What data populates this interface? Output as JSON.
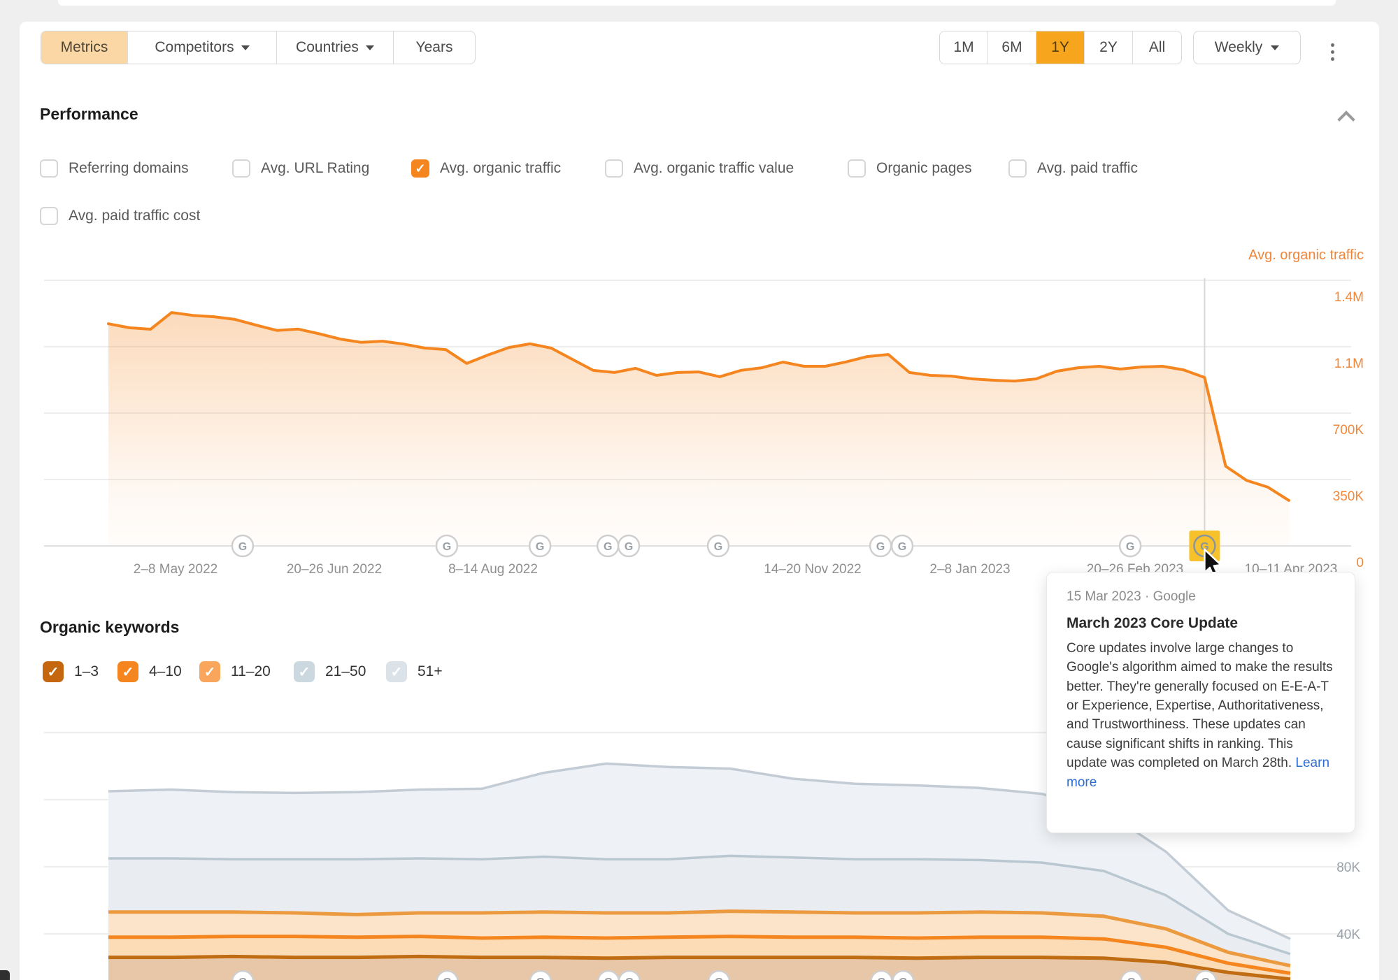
{
  "toolbar": {
    "tabs": [
      {
        "label": "Metrics",
        "selected": true,
        "caret": false
      },
      {
        "label": "Competitors",
        "selected": false,
        "caret": true
      },
      {
        "label": "Countries",
        "selected": false,
        "caret": true
      },
      {
        "label": "Years",
        "selected": false,
        "caret": false
      }
    ],
    "ranges": [
      "1M",
      "6M",
      "1Y",
      "2Y",
      "All"
    ],
    "range_selected": "1Y",
    "granularity": "Weekly",
    "icons": {
      "menu": "kebab-vertical-icon",
      "caret": "caret-down-icon"
    }
  },
  "performance": {
    "title": "Performance",
    "collapse_icon": "chevron-up-icon",
    "metrics": [
      {
        "label": "Referring domains",
        "checked": false
      },
      {
        "label": "Avg. URL Rating",
        "checked": false
      },
      {
        "label": "Avg. organic traffic",
        "checked": true,
        "color": "#f5861f"
      },
      {
        "label": "Avg. organic traffic value",
        "checked": false
      },
      {
        "label": "Organic pages",
        "checked": false
      },
      {
        "label": "Avg. paid traffic",
        "checked": false
      },
      {
        "label": "Avg. paid traffic cost",
        "checked": false
      }
    ],
    "check_glyph": "✓"
  },
  "keywords": {
    "title": "Organic keywords",
    "filters": [
      {
        "label": "1–3",
        "checked": true,
        "color": "#c4670e"
      },
      {
        "label": "4–10",
        "checked": true,
        "color": "#f5861f"
      },
      {
        "label": "11–20",
        "checked": true,
        "color": "#f9a55b"
      },
      {
        "label": "21–50",
        "checked": true,
        "color": "#ccd8e0"
      },
      {
        "label": "51+",
        "checked": true,
        "color": "#dbe3e9"
      }
    ]
  },
  "tooltip": {
    "date": "15 Mar 2023 · Google",
    "title": "March 2023 Core Update",
    "body": "Core updates involve large changes to Google's algorithm aimed to make the results better. They're generally focused on E-E-A-T or Experience, Expertise, Authoritativeness, and Trustworthiness. These updates can cause significant shifts in ranking. This update was completed on March 28th.",
    "link": "Learn more"
  },
  "chart_data": [
    {
      "type": "area",
      "name": "avg-organic-traffic",
      "title": "Avg. organic traffic",
      "line_color": "#f5861f",
      "grid": true,
      "legend_position": "top-right",
      "y_ticks": [
        {
          "label": "1.4M",
          "value": 1400
        },
        {
          "label": "1.1M",
          "value": 1050
        },
        {
          "label": "700K",
          "value": 700
        },
        {
          "label": "350K",
          "value": 350
        },
        {
          "label": "0",
          "value": 0
        }
      ],
      "ylim": [
        0,
        1400
      ],
      "x_tick_labels": [
        "2–8 May 2022",
        "20–26 Jun 2022",
        "8–14 Aug 2022",
        "14–20 Nov 2022",
        "2–8 Jan 2023",
        "20–26 Feb 2023",
        "10–11 Apr 2023"
      ],
      "values_k": [
        1171,
        1150,
        1142,
        1230,
        1215,
        1208,
        1194,
        1164,
        1136,
        1143,
        1118,
        1090,
        1073,
        1079,
        1064,
        1043,
        1035,
        962,
        1006,
        1046,
        1065,
        1043,
        984,
        925,
        914,
        936,
        899,
        914,
        917,
        892,
        925,
        939,
        969,
        947,
        947,
        970,
        998,
        1009,
        914,
        899,
        895,
        880,
        873,
        869,
        880,
        921,
        939,
        947,
        932,
        943,
        947,
        928,
        888,
        420,
        345,
        310,
        240
      ],
      "highlight_index": 52,
      "google_update_fracs": [
        0.1137,
        0.2867,
        0.3656,
        0.4231,
        0.4408,
        0.5166,
        0.6541,
        0.6724,
        0.8656
      ],
      "marker_glyph": "G",
      "marker_icon": "google-g-icon",
      "highlight_marker_icon": "google-g-icon-highlighted",
      "cursor_icon": "mouse-cursor-icon"
    },
    {
      "type": "stacked-area",
      "name": "organic-keywords-positions",
      "grid": true,
      "y_grid_values": [
        160,
        120,
        80,
        40
      ],
      "y_ticks": [
        {
          "label": "80K",
          "value": 80
        },
        {
          "label": "40K",
          "value": 40
        }
      ],
      "series": [
        {
          "name": "1–3",
          "fill": "#e8c7a8",
          "line": "#c06c12",
          "lw": 5,
          "values": [
            26,
            26,
            26.5,
            26,
            26,
            26.5,
            26,
            26,
            25.5,
            26,
            26,
            26,
            26,
            25.5,
            26,
            26,
            25.5,
            23,
            17,
            13
          ]
        },
        {
          "name": "4–10",
          "fill": "#fbdcb6",
          "line": "#f5861f",
          "lw": 5,
          "values": [
            12,
            12,
            12,
            12.5,
            12,
            12,
            11.5,
            12,
            12,
            12,
            12.5,
            12,
            12,
            12,
            12,
            12,
            11.5,
            9,
            5.5,
            3.5
          ]
        },
        {
          "name": "11–20",
          "fill": "#fce4ca",
          "line": "#ec9a40",
          "lw": 5,
          "values": [
            15,
            15,
            14.5,
            14,
            13.5,
            14,
            15,
            15,
            15,
            14.5,
            15,
            15,
            14.5,
            15,
            15,
            14.5,
            13.5,
            11,
            6.5,
            4.5
          ]
        },
        {
          "name": "21–50",
          "fill": "#e9edf2",
          "line": "#b9c7d1",
          "lw": 3.5,
          "values": [
            32,
            32,
            31.5,
            32,
            33,
            32.5,
            32,
            33,
            32,
            32,
            33,
            32.5,
            32,
            32,
            31,
            30,
            27,
            20,
            11,
            7
          ]
        },
        {
          "name": "51+",
          "fill": "#eef1f5",
          "line": "#c3ccd5",
          "lw": 3.5,
          "values": [
            40,
            41,
            40,
            39.5,
            40,
            41,
            42,
            50,
            57,
            55,
            52,
            47,
            45,
            44,
            43,
            41,
            36,
            26,
            14,
            9
          ]
        }
      ],
      "google_update_fracs": [
        0.1137,
        0.2867,
        0.3656,
        0.4231,
        0.4408,
        0.5166,
        0.6541,
        0.6724,
        0.8656,
        0.9283
      ],
      "marker_glyph": "G"
    }
  ]
}
